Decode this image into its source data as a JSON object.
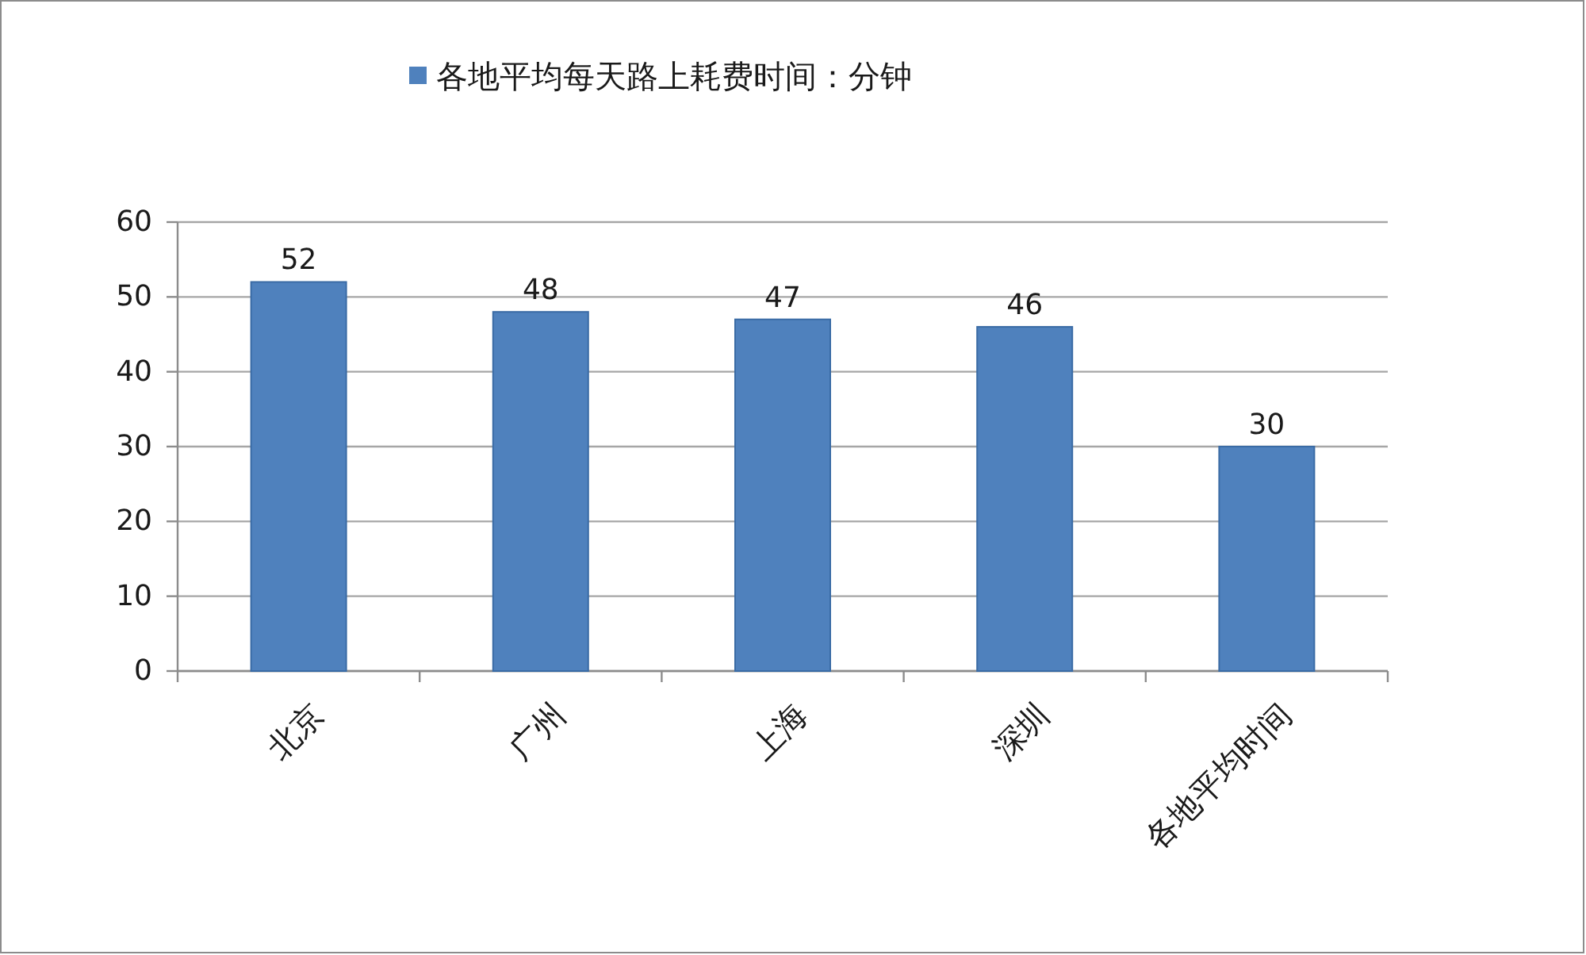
{
  "chart_data": {
    "type": "bar",
    "categories": [
      "北京",
      "广州",
      "上海",
      "深圳",
      "各地平均时间"
    ],
    "series": [
      {
        "name": "各地平均每天路上耗费时间：分钟",
        "color": "#4f81bd",
        "values": [
          52,
          48,
          47,
          46,
          30
        ]
      }
    ],
    "ylim": [
      0,
      60
    ],
    "yticks": [
      0,
      10,
      20,
      30,
      40,
      50,
      60
    ],
    "grid": "y",
    "legend": "top",
    "data_labels": true
  }
}
